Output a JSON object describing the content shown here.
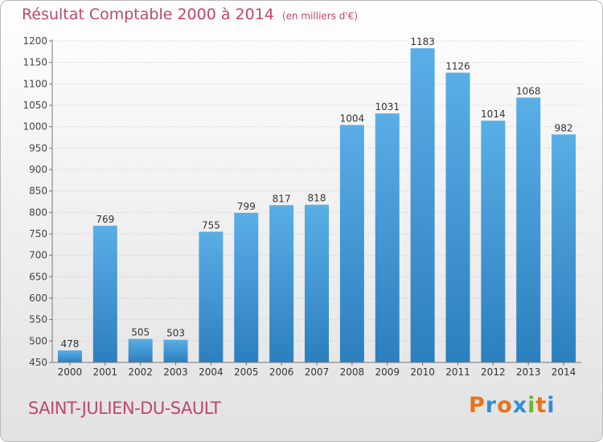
{
  "header": {
    "title": "Résultat Comptable 2000 à 2014",
    "subtitle": "(en milliers d'€)"
  },
  "footer": {
    "commune": "SAINT-JULIEN-DU-SAULT",
    "brand": "Proxiti"
  },
  "colors": {
    "title": "#c0466f",
    "bar_top": "#5aaee6",
    "bar_bottom": "#2c7fbe",
    "grid": "#c8c8c8",
    "logo_letters": [
      "#e8731a",
      "#2f8fd8",
      "#e8731a",
      "#2f8fd8",
      "#6bb52b",
      "#e8731a",
      "#2f8fd8"
    ]
  },
  "chart_data": {
    "type": "bar",
    "title": "Résultat Comptable 2000 à 2014",
    "subtitle": "(en milliers d'€)",
    "categories": [
      "2000",
      "2001",
      "2002",
      "2003",
      "2004",
      "2005",
      "2006",
      "2007",
      "2008",
      "2009",
      "2010",
      "2011",
      "2012",
      "2013",
      "2014"
    ],
    "values": [
      478,
      769,
      505,
      503,
      755,
      799,
      817,
      818,
      1004,
      1031,
      1183,
      1126,
      1014,
      1068,
      982
    ],
    "ylim": [
      450,
      1200
    ],
    "yticks": [
      450,
      500,
      550,
      600,
      650,
      700,
      750,
      800,
      850,
      900,
      950,
      1000,
      1050,
      1100,
      1150,
      1200
    ],
    "xlabel": "",
    "ylabel": "",
    "grid": true,
    "data_labels": true
  }
}
